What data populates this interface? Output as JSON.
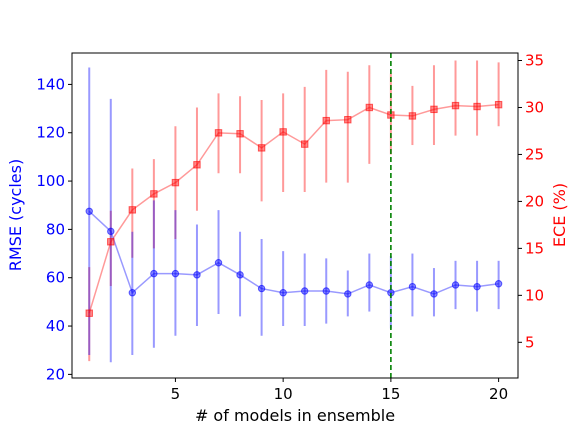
{
  "chart_data": {
    "type": "line",
    "xlabel": "# of models in ensemble",
    "ylabel_left": "RMSE (cycles)",
    "ylabel_right": "ECE (%)",
    "x": [
      1,
      2,
      3,
      4,
      5,
      6,
      7,
      8,
      9,
      10,
      11,
      12,
      13,
      14,
      15,
      16,
      17,
      18,
      19,
      20
    ],
    "xlim": [
      0.2,
      20.9
    ],
    "x_ticks": [
      5,
      10,
      15,
      20
    ],
    "y_left_lim": [
      18.5,
      153
    ],
    "y_left_ticks": [
      20,
      40,
      60,
      80,
      100,
      120,
      140
    ],
    "y_right_lim": [
      1.2,
      35.8
    ],
    "y_right_ticks": [
      5,
      10,
      15,
      20,
      25,
      30,
      35
    ],
    "vline_x": 15,
    "colors": {
      "rmse": "#0000ff",
      "ece": "#ff0000",
      "vline": "#008000",
      "axis_left": "#0000ff",
      "axis_right": "#ff0000"
    },
    "series": [
      {
        "axis": "left",
        "marker": "circle",
        "values": [
          87.5,
          79.2,
          53.8,
          61.7,
          61.7,
          61.2,
          66.2,
          61.2,
          55.5,
          53.8,
          54.5,
          54.5,
          53.3,
          57.0,
          53.8,
          56.3,
          53.3,
          57.0,
          56.3,
          57.5
        ],
        "err_low": [
          28,
          25,
          28,
          31,
          36,
          40,
          45,
          44,
          36,
          40,
          40,
          41,
          44,
          46,
          39,
          44,
          44,
          47,
          46,
          47
        ],
        "err_high": [
          147,
          134,
          79,
          92,
          88,
          82,
          88,
          79,
          76,
          71,
          70,
          68,
          63,
          70,
          69,
          70,
          64,
          67,
          67,
          67
        ]
      },
      {
        "axis": "right",
        "marker": "square",
        "values": [
          8.1,
          15.7,
          19.1,
          20.8,
          22.0,
          23.9,
          27.3,
          27.2,
          25.7,
          27.4,
          26.1,
          28.6,
          28.7,
          30.0,
          29.2,
          29.1,
          29.8,
          30.2,
          30.1,
          30.3
        ],
        "err_low": [
          3,
          11,
          14,
          15,
          16,
          19,
          23,
          23,
          20,
          21,
          21,
          22,
          22,
          24,
          25,
          26,
          26,
          27,
          27,
          28
        ],
        "err_high": [
          13,
          19,
          23.5,
          24.5,
          28,
          30,
          31.5,
          31.2,
          30.8,
          31.5,
          32.2,
          34,
          33.8,
          34.5,
          33.6,
          32.3,
          34.5,
          35,
          35,
          34.8
        ]
      }
    ]
  }
}
